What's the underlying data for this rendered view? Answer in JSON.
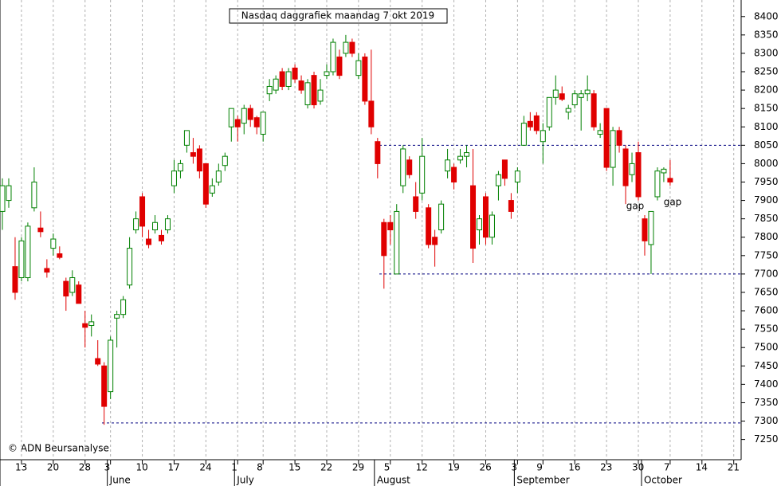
{
  "chart_data": {
    "type": "candlestick",
    "title": "Nasdaq daggrafiek maandag 7 okt 2019",
    "copyright": "© ADN Beursanalyse",
    "annotations": [
      "gap",
      "gap"
    ],
    "categories": [
      null,
      null,
      null,
      "13",
      null,
      null,
      null,
      null,
      "20",
      null,
      null,
      null,
      null,
      "28",
      null,
      null,
      null,
      "3",
      null,
      null,
      null,
      null,
      "10",
      null,
      null,
      null,
      null,
      "17",
      null,
      null,
      null,
      null,
      "24",
      null,
      null,
      null,
      null,
      "1",
      null,
      null,
      null,
      "8",
      null,
      null,
      null,
      null,
      "15",
      null,
      null,
      null,
      null,
      "22",
      null,
      null,
      null,
      null,
      "29",
      null,
      null,
      null,
      null,
      "5",
      null,
      null,
      null,
      null,
      "12",
      null,
      null,
      null,
      null,
      "19",
      null,
      null,
      null,
      null,
      "26",
      null,
      null,
      null,
      null,
      "3",
      null,
      null,
      null,
      "9",
      null,
      null,
      null,
      null,
      "16",
      null,
      null,
      null,
      null,
      "23",
      null,
      null,
      null,
      null,
      "30",
      null,
      null,
      null,
      null,
      "7",
      null,
      null,
      null,
      null,
      "14",
      null,
      null,
      null,
      null,
      "21"
    ],
    "months": [
      null,
      null,
      null,
      null,
      null,
      null,
      null,
      null,
      null,
      null,
      null,
      null,
      null,
      null,
      null,
      null,
      null,
      "June",
      null,
      null,
      null,
      null,
      null,
      null,
      null,
      null,
      null,
      null,
      null,
      null,
      null,
      null,
      null,
      null,
      null,
      null,
      null,
      "July",
      null,
      null,
      null,
      null,
      null,
      null,
      null,
      null,
      null,
      null,
      null,
      null,
      null,
      null,
      null,
      null,
      null,
      null,
      null,
      null,
      null,
      "August",
      null,
      null,
      null,
      null,
      null,
      null,
      null,
      null,
      null,
      null,
      null,
      null,
      null,
      null,
      null,
      null,
      null,
      null,
      null,
      null,
      null,
      "September",
      null,
      null,
      null,
      null,
      null,
      null,
      null,
      null,
      null,
      null,
      null,
      null,
      null,
      null,
      null,
      null,
      null,
      null,
      null,
      "October",
      null,
      null,
      null,
      null,
      null,
      null,
      null,
      null,
      null,
      null,
      null,
      null,
      null,
      null
    ],
    "open": [
      7870,
      7900,
      7720,
      7690,
      7690,
      7880,
      7825,
      7715,
      7770,
      7755,
      7680,
      7650,
      7670,
      7565,
      7560,
      7470,
      7450,
      7380,
      7580,
      7590,
      7670,
      7820,
      7910,
      7795,
      7820,
      7805,
      7820,
      7940,
      7980,
      8050,
      8030,
      8040,
      8000,
      7920,
      7950,
      7995,
      8100,
      8120,
      8110,
      8150,
      8125,
      8080,
      8190,
      8200,
      8250,
      8210,
      8260,
      8225,
      8160,
      8240,
      8170,
      8240,
      8250,
      8290,
      8300,
      8330,
      8240,
      8290,
      8170,
      8060,
      7840,
      7840,
      7700,
      7940,
      8010,
      7910,
      7920,
      7880,
      7800,
      7820,
      7980,
      7990,
      8010,
      8020,
      7940,
      7820,
      7910,
      7800,
      7940,
      8010,
      7900,
      7950,
      8050,
      8115,
      8130,
      8060,
      8100,
      8180,
      8190,
      8140,
      8160,
      8180,
      8190,
      8190,
      8080,
      8150,
      7990,
      8090,
      8040,
      7970,
      8030,
      7850,
      7780,
      7910,
      7975,
      7960,
      null,
      null,
      null,
      null,
      null,
      null,
      null,
      null,
      null,
      null
    ],
    "high": [
      7960,
      7960,
      7800,
      7800,
      7840,
      7990,
      7870,
      7740,
      7810,
      7775,
      7690,
      7710,
      7680,
      7600,
      7590,
      7520,
      7460,
      7530,
      7600,
      7640,
      7800,
      7870,
      7920,
      7820,
      7860,
      7820,
      7860,
      8010,
      8010,
      8090,
      8070,
      8050,
      8000,
      7960,
      8000,
      8030,
      8150,
      8130,
      8160,
      8160,
      8130,
      8140,
      8230,
      8240,
      8260,
      8260,
      8270,
      8240,
      8230,
      8250,
      8230,
      8270,
      8340,
      8310,
      8350,
      8340,
      8300,
      8300,
      8310,
      8070,
      7850,
      7860,
      7890,
      8050,
      8020,
      7950,
      8070,
      7890,
      7820,
      7900,
      8040,
      8000,
      8040,
      8050,
      8040,
      7860,
      7920,
      7870,
      7980,
      8010,
      7920,
      7990,
      8130,
      8140,
      8140,
      8110,
      8180,
      8240,
      8210,
      8160,
      8200,
      8200,
      8240,
      8200,
      8110,
      8150,
      8100,
      8100,
      8050,
      8030,
      8060,
      7860,
      7870,
      7990,
      7990,
      8010,
      null,
      null,
      null,
      null,
      null,
      null,
      null,
      null,
      null,
      null
    ],
    "low": [
      7820,
      7880,
      7630,
      7680,
      7680,
      7870,
      7800,
      7690,
      7750,
      7740,
      7600,
      7640,
      7620,
      7500,
      7530,
      7450,
      7290,
      7360,
      7500,
      7580,
      7660,
      7810,
      7800,
      7770,
      7810,
      7780,
      7810,
      7920,
      7960,
      8030,
      8000,
      7960,
      7880,
      7910,
      7940,
      7980,
      8060,
      8060,
      8080,
      8100,
      8080,
      8060,
      8170,
      8190,
      8200,
      8200,
      8220,
      8190,
      8150,
      8150,
      8160,
      8230,
      8240,
      8230,
      8290,
      8290,
      8230,
      8160,
      8080,
      7960,
      7660,
      7780,
      7700,
      7920,
      7960,
      7850,
      7900,
      7770,
      7720,
      7810,
      7960,
      7930,
      8000,
      7990,
      7730,
      7780,
      7780,
      7780,
      7900,
      7940,
      7850,
      7920,
      8050,
      8090,
      8080,
      8000,
      8090,
      8160,
      8170,
      8120,
      8150,
      8090,
      8170,
      8090,
      8070,
      7980,
      7940,
      8030,
      7890,
      7950,
      7900,
      7750,
      7700,
      7900,
      7950,
      7940,
      null,
      null,
      null,
      null,
      null,
      null,
      null,
      null,
      null,
      null
    ],
    "close": [
      7940,
      7940,
      7650,
      7790,
      7830,
      7950,
      7815,
      7705,
      7795,
      7745,
      7640,
      7690,
      7620,
      7555,
      7570,
      7455,
      7340,
      7520,
      7590,
      7630,
      7770,
      7850,
      7830,
      7780,
      7840,
      7790,
      7850,
      7980,
      8000,
      8090,
      8020,
      7980,
      7890,
      7940,
      7980,
      8020,
      8150,
      8100,
      8150,
      8120,
      8100,
      8140,
      8210,
      8230,
      8210,
      8250,
      8230,
      8200,
      8220,
      8160,
      8200,
      8250,
      8330,
      8240,
      8330,
      8300,
      8280,
      8170,
      8100,
      8000,
      7750,
      7820,
      7870,
      8040,
      7970,
      7870,
      8020,
      7780,
      7780,
      7890,
      8010,
      7950,
      8020,
      8030,
      7770,
      7850,
      7800,
      7860,
      7970,
      7960,
      7870,
      7980,
      8110,
      8100,
      8090,
      8090,
      8180,
      8200,
      8175,
      8150,
      8190,
      8190,
      8200,
      8100,
      8090,
      7990,
      8090,
      8050,
      7940,
      8000,
      7910,
      7790,
      7870,
      7980,
      7985,
      7950,
      null,
      null,
      null,
      null,
      null,
      null,
      null,
      null,
      null,
      null
    ],
    "up_color": "#008000",
    "down_color": "#e00000",
    "reference_lines": [
      8050,
      7700,
      7295
    ],
    "reference_color": "#000080",
    "ylim": [
      7195,
      8445
    ],
    "yticks": [
      7250,
      7300,
      7350,
      7400,
      7450,
      7500,
      7550,
      7600,
      7650,
      7700,
      7750,
      7800,
      7850,
      7900,
      7950,
      8000,
      8050,
      8100,
      8150,
      8200,
      8250,
      8300,
      8350,
      8400
    ],
    "grid": true,
    "y_axis_side": "right"
  }
}
